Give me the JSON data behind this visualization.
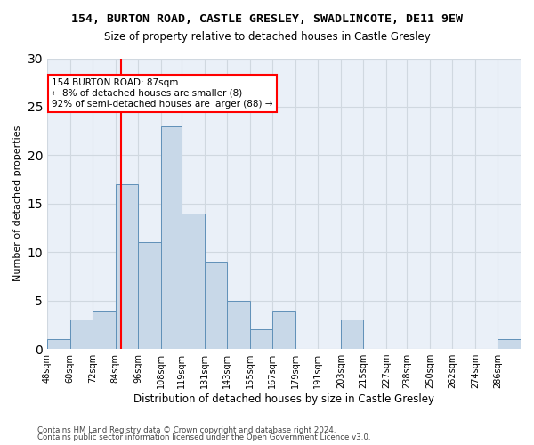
{
  "title1": "154, BURTON ROAD, CASTLE GRESLEY, SWADLINCOTE, DE11 9EW",
  "title2": "Size of property relative to detached houses in Castle Gresley",
  "xlabel": "Distribution of detached houses by size in Castle Gresley",
  "ylabel": "Number of detached properties",
  "footer1": "Contains HM Land Registry data © Crown copyright and database right 2024.",
  "footer2": "Contains public sector information licensed under the Open Government Licence v3.0.",
  "bin_labels": [
    "48sqm",
    "60sqm",
    "72sqm",
    "84sqm",
    "96sqm",
    "108sqm",
    "119sqm",
    "131sqm",
    "143sqm",
    "155sqm",
    "167sqm",
    "179sqm",
    "191sqm",
    "203sqm",
    "215sqm",
    "227sqm",
    "238sqm",
    "250sqm",
    "262sqm",
    "274sqm",
    "286sqm"
  ],
  "bin_edges": [
    48,
    60,
    72,
    84,
    96,
    108,
    119,
    131,
    143,
    155,
    167,
    179,
    191,
    203,
    215,
    227,
    238,
    250,
    262,
    274,
    286
  ],
  "bar_heights": [
    1,
    3,
    4,
    17,
    11,
    23,
    14,
    9,
    5,
    2,
    4,
    0,
    0,
    3,
    0,
    0,
    0,
    0,
    0,
    0,
    1
  ],
  "bar_color": "#c8d8e8",
  "bar_edge_color": "#6090b8",
  "vline_x": 87,
  "vline_color": "red",
  "annotation_text": "154 BURTON ROAD: 87sqm\n← 8% of detached houses are smaller (8)\n92% of semi-detached houses are larger (88) →",
  "annotation_box_color": "white",
  "annotation_box_edge_color": "red",
  "ylim": [
    0,
    30
  ],
  "yticks": [
    0,
    5,
    10,
    15,
    20,
    25,
    30
  ],
  "grid_color": "#d0d8e0",
  "background_color": "#eaf0f8"
}
